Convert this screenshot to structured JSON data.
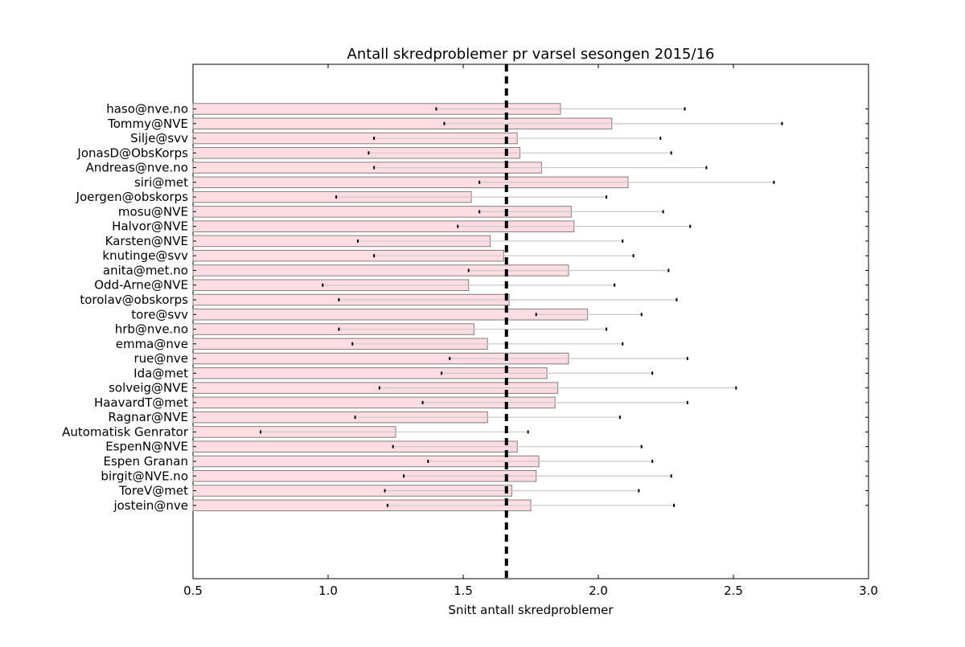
{
  "chart_data": {
    "type": "bar",
    "orientation": "horizontal",
    "title": "Antall skredproblemer pr varsel sesongen 2015/16",
    "xlabel": "Snitt antall skredproblemer",
    "ylabel": "",
    "xlim": [
      0.5,
      3.0
    ],
    "xticks": [
      "0.5",
      "1.0",
      "1.5",
      "2.0",
      "2.5",
      "3.0"
    ],
    "mean_line": 1.66,
    "grid": false,
    "legend": "none",
    "colors": {
      "bar_fill": "#ffdde2",
      "bar_edge": "#7f7f7f",
      "error_bar": "#c8c8c8",
      "mean_line": "#000000"
    },
    "categories": [
      "haso@nve.no",
      "Tommy@NVE",
      "Silje@svv",
      "JonasD@ObsKorps",
      "Andreas@nve.no",
      "siri@met",
      "Joergen@obskorps",
      "mosu@NVE",
      "Halvor@NVE",
      "Karsten@NVE",
      "knutinge@svv",
      "anita@met.no",
      "Odd-Arne@NVE",
      "torolav@obskorps",
      "tore@svv",
      "hrb@nve.no",
      "emma@nve",
      "rue@nve",
      "Ida@met",
      "solveig@NVE",
      "HaavardT@met",
      "Ragnar@NVE",
      "Automatisk Genrator",
      "EspenN@NVE",
      "Espen Granan",
      "birgit@NVE.no",
      "ToreV@met",
      "jostein@nve"
    ],
    "values": [
      1.86,
      2.05,
      1.7,
      1.71,
      1.79,
      2.11,
      1.53,
      1.9,
      1.91,
      1.6,
      1.65,
      1.89,
      1.52,
      1.67,
      1.96,
      1.54,
      1.59,
      1.89,
      1.81,
      1.85,
      1.84,
      1.59,
      1.25,
      1.7,
      1.78,
      1.77,
      1.68,
      1.75
    ],
    "error_low": [
      1.4,
      1.43,
      1.17,
      1.15,
      1.17,
      1.56,
      1.03,
      1.56,
      1.48,
      1.11,
      1.17,
      1.52,
      0.98,
      1.04,
      1.77,
      1.04,
      1.09,
      1.45,
      1.42,
      1.19,
      1.35,
      1.1,
      0.75,
      1.24,
      1.37,
      1.28,
      1.21,
      1.22
    ],
    "error_high": [
      2.32,
      2.68,
      2.23,
      2.27,
      2.4,
      2.65,
      2.03,
      2.24,
      2.34,
      2.09,
      2.13,
      2.26,
      2.06,
      2.29,
      2.16,
      2.03,
      2.09,
      2.33,
      2.2,
      2.51,
      2.33,
      2.08,
      1.74,
      2.16,
      2.2,
      2.27,
      2.15,
      2.28
    ]
  }
}
